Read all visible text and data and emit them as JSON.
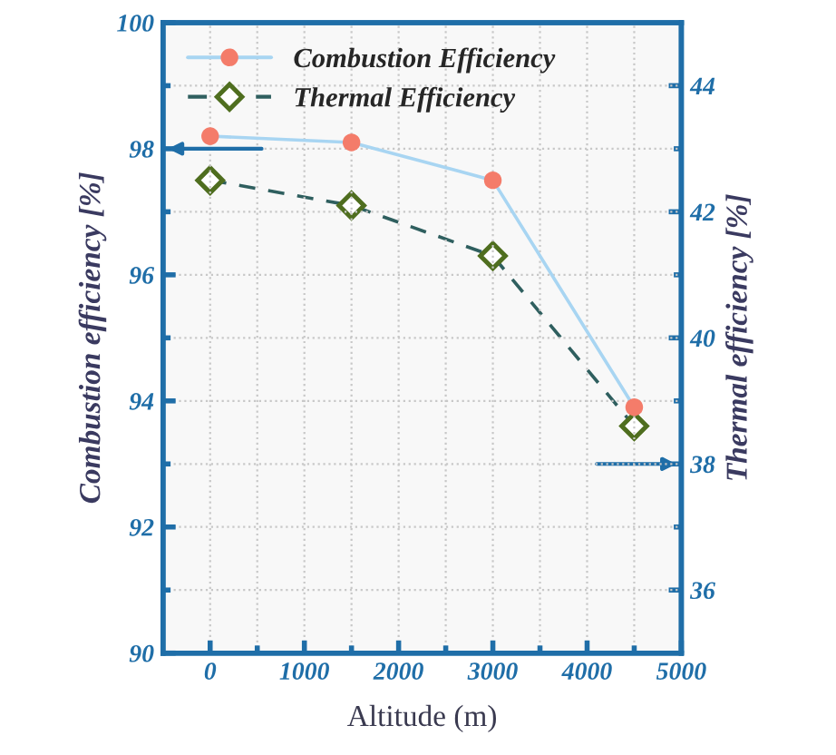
{
  "chart_data": {
    "type": "line",
    "xlabel": "Altitude (m)",
    "ylabel": "Combustion efficiency [%]",
    "y2label": "Thermal efficiency [%]",
    "x": [
      0,
      1500,
      3000,
      4500
    ],
    "series": [
      {
        "name": "Combustion Efficiency",
        "color": "#a8d5f2",
        "colors": [
          "#f47c6a",
          "#f47c6a",
          "#f47c6a",
          "#f47c6a"
        ],
        "marker": "circle",
        "line_style": "solid",
        "values": [
          98.2,
          98.1,
          97.5,
          93.9
        ]
      },
      {
        "name": "Thermal Efficiency",
        "color": "#2f5f5f",
        "colors": [
          "#4f6e1f",
          "#4f6e1f",
          "#4f6e1f",
          "#4f6e1f"
        ],
        "marker": "diamond",
        "line_style": "dashed",
        "axis": "y2",
        "values": [
          42.5,
          42.1,
          41.3,
          38.6
        ]
      }
    ],
    "xlim": [
      -500,
      5000
    ],
    "xticks": [
      0,
      1000,
      2000,
      3000,
      4000,
      5000
    ],
    "ylim": [
      90,
      100
    ],
    "yticks": [
      90,
      92,
      94,
      96,
      98,
      100
    ],
    "y2lim": [
      35,
      45
    ],
    "y2ticks": [
      36,
      38,
      40,
      42,
      44
    ],
    "grid": true,
    "legend": "top left"
  }
}
